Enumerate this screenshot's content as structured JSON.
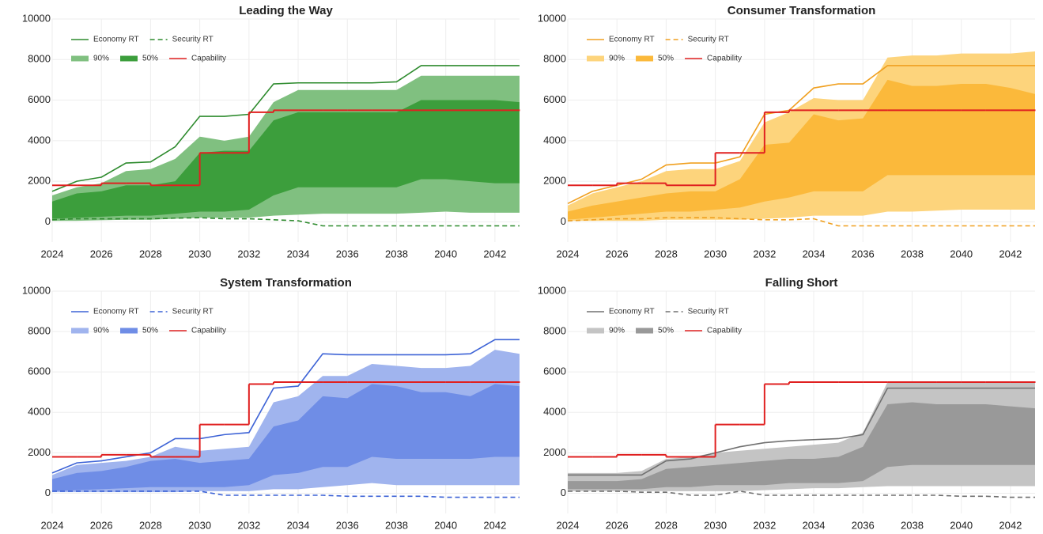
{
  "chart_data": [
    {
      "type": "line",
      "title": "Leading the Way",
      "legend": "upper left",
      "grid": true,
      "x": [
        2024,
        2025,
        2026,
        2027,
        2028,
        2029,
        2030,
        2031,
        2032,
        2033,
        2034,
        2035,
        2036,
        2037,
        2038,
        2039,
        2040,
        2041,
        2042,
        2043
      ],
      "xlim": [
        2024,
        2043
      ],
      "xticks": [
        2024,
        2026,
        2028,
        2030,
        2032,
        2034,
        2036,
        2038,
        2040,
        2042
      ],
      "ylim": [
        -1000,
        10000
      ],
      "yticks": [
        0,
        2000,
        4000,
        6000,
        8000,
        10000
      ],
      "series": [
        {
          "name": "Economy RT",
          "color": "#2e8b2e",
          "style": "solid",
          "values": [
            1500,
            2000,
            2200,
            2900,
            2950,
            3700,
            5200,
            5200,
            5300,
            6800,
            6850,
            6850,
            6850,
            6850,
            6900,
            7700,
            7700,
            7700,
            7700,
            7700
          ]
        },
        {
          "name": "Security RT",
          "color": "#2e8b2e",
          "style": "dashed",
          "values": [
            100,
            150,
            150,
            150,
            150,
            180,
            200,
            150,
            150,
            100,
            50,
            -200,
            -200,
            -200,
            -200,
            -200,
            -200,
            -200,
            -200,
            -200
          ]
        },
        {
          "name": "90%",
          "color": "#80c080",
          "style": "band",
          "lower": [
            50,
            50,
            80,
            100,
            100,
            150,
            200,
            200,
            200,
            300,
            350,
            400,
            400,
            400,
            400,
            450,
            500,
            450,
            450,
            450
          ],
          "upper": [
            1300,
            1700,
            1900,
            2500,
            2600,
            3100,
            4200,
            4000,
            4200,
            5900,
            6500,
            6500,
            6500,
            6500,
            6500,
            7200,
            7200,
            7200,
            7200,
            7200
          ]
        },
        {
          "name": "50%",
          "color": "#3c9e3c",
          "style": "band",
          "lower": [
            150,
            200,
            250,
            300,
            300,
            400,
            500,
            500,
            600,
            1300,
            1700,
            1700,
            1700,
            1700,
            1700,
            2100,
            2100,
            2000,
            1900,
            1900
          ],
          "upper": [
            1000,
            1400,
            1500,
            1800,
            1800,
            2000,
            3400,
            3500,
            3500,
            5000,
            5400,
            5400,
            5400,
            5400,
            5400,
            6000,
            6000,
            6000,
            6000,
            5900
          ]
        },
        {
          "name": "Capability",
          "color": "#e02020",
          "style": "step",
          "values": [
            1800,
            1800,
            1900,
            1900,
            1800,
            1800,
            3400,
            3400,
            5400,
            5500,
            5500,
            5500,
            5500,
            5500,
            5500,
            5500,
            5500,
            5500,
            5500,
            5500
          ]
        }
      ]
    },
    {
      "type": "line",
      "title": "Consumer Transformation",
      "legend": "upper left",
      "grid": true,
      "x": [
        2024,
        2025,
        2026,
        2027,
        2028,
        2029,
        2030,
        2031,
        2032,
        2033,
        2034,
        2035,
        2036,
        2037,
        2038,
        2039,
        2040,
        2041,
        2042,
        2043
      ],
      "xlim": [
        2024,
        2043
      ],
      "xticks": [
        2024,
        2026,
        2028,
        2030,
        2032,
        2034,
        2036,
        2038,
        2040,
        2042
      ],
      "ylim": [
        -1000,
        10000
      ],
      "yticks": [
        0,
        2000,
        4000,
        6000,
        8000,
        10000
      ],
      "series": [
        {
          "name": "Economy RT",
          "color": "#f0a020",
          "style": "solid",
          "values": [
            900,
            1500,
            1800,
            2100,
            2800,
            2900,
            2900,
            3200,
            5300,
            5500,
            6600,
            6800,
            6800,
            7700,
            7700,
            7700,
            7700,
            7700,
            7700,
            7700
          ]
        },
        {
          "name": "Security RT",
          "color": "#f0a020",
          "style": "dashed",
          "values": [
            50,
            100,
            150,
            150,
            200,
            200,
            200,
            150,
            100,
            100,
            150,
            -200,
            -200,
            -200,
            -200,
            -200,
            -200,
            -200,
            -200,
            -200
          ]
        },
        {
          "name": "90%",
          "color": "#fdd47c",
          "style": "band",
          "lower": [
            50,
            50,
            50,
            50,
            100,
            100,
            100,
            100,
            150,
            200,
            300,
            300,
            300,
            500,
            500,
            550,
            600,
            600,
            600,
            600
          ],
          "upper": [
            800,
            1400,
            1700,
            2000,
            2500,
            2600,
            2600,
            3000,
            4900,
            5400,
            6100,
            6000,
            6000,
            8100,
            8200,
            8200,
            8300,
            8300,
            8300,
            8400
          ]
        },
        {
          "name": "50%",
          "color": "#fbb93b",
          "style": "band",
          "lower": [
            100,
            200,
            300,
            400,
            500,
            500,
            600,
            700,
            1000,
            1200,
            1500,
            1500,
            1500,
            2300,
            2300,
            2300,
            2300,
            2300,
            2300,
            2300
          ],
          "upper": [
            500,
            800,
            1000,
            1200,
            1400,
            1500,
            1500,
            2100,
            3800,
            3900,
            5300,
            5000,
            5100,
            7000,
            6700,
            6700,
            6800,
            6800,
            6600,
            6300
          ]
        },
        {
          "name": "Capability",
          "color": "#e02020",
          "style": "step",
          "values": [
            1800,
            1800,
            1900,
            1900,
            1800,
            1800,
            3400,
            3400,
            5400,
            5500,
            5500,
            5500,
            5500,
            5500,
            5500,
            5500,
            5500,
            5500,
            5500,
            5500
          ]
        }
      ]
    },
    {
      "type": "line",
      "title": "System Transformation",
      "legend": "upper left",
      "grid": true,
      "x": [
        2024,
        2025,
        2026,
        2027,
        2028,
        2029,
        2030,
        2031,
        2032,
        2033,
        2034,
        2035,
        2036,
        2037,
        2038,
        2039,
        2040,
        2041,
        2042,
        2043
      ],
      "xlim": [
        2024,
        2043
      ],
      "xticks": [
        2024,
        2026,
        2028,
        2030,
        2032,
        2034,
        2036,
        2038,
        2040,
        2042
      ],
      "ylim": [
        -1000,
        10000
      ],
      "yticks": [
        0,
        2000,
        4000,
        6000,
        8000,
        10000
      ],
      "series": [
        {
          "name": "Economy RT",
          "color": "#3d63d6",
          "style": "solid",
          "values": [
            1000,
            1500,
            1600,
            1800,
            2000,
            2700,
            2700,
            2900,
            3000,
            5200,
            5300,
            6900,
            6850,
            6850,
            6850,
            6850,
            6850,
            6900,
            7600,
            7600
          ]
        },
        {
          "name": "Security RT",
          "color": "#3d63d6",
          "style": "dashed",
          "values": [
            100,
            100,
            100,
            100,
            100,
            100,
            100,
            -100,
            -100,
            -100,
            -100,
            -100,
            -150,
            -150,
            -150,
            -150,
            -200,
            -200,
            -200,
            -200
          ]
        },
        {
          "name": "90%",
          "color": "#a0b4ee",
          "style": "band",
          "lower": [
            50,
            50,
            50,
            50,
            50,
            50,
            100,
            100,
            100,
            200,
            200,
            300,
            400,
            500,
            400,
            400,
            400,
            400,
            400,
            400
          ],
          "upper": [
            900,
            1400,
            1500,
            1600,
            1800,
            2300,
            2100,
            2200,
            2300,
            4500,
            4800,
            5800,
            5800,
            6400,
            6300,
            6200,
            6200,
            6300,
            7100,
            6900
          ]
        },
        {
          "name": "50%",
          "color": "#6f8de6",
          "style": "band",
          "lower": [
            100,
            150,
            200,
            250,
            300,
            300,
            300,
            300,
            400,
            900,
            1000,
            1300,
            1300,
            1800,
            1700,
            1700,
            1700,
            1700,
            1800,
            1800
          ],
          "upper": [
            700,
            1000,
            1100,
            1300,
            1600,
            1700,
            1500,
            1600,
            1700,
            3300,
            3600,
            4800,
            4700,
            5400,
            5300,
            5000,
            5000,
            4800,
            5400,
            5300
          ]
        },
        {
          "name": "Capability",
          "color": "#e02020",
          "style": "step",
          "values": [
            1800,
            1800,
            1900,
            1900,
            1800,
            1800,
            3400,
            3400,
            5400,
            5500,
            5500,
            5500,
            5500,
            5500,
            5500,
            5500,
            5500,
            5500,
            5500,
            5500
          ]
        }
      ]
    },
    {
      "type": "line",
      "title": "Falling Short",
      "legend": "upper left",
      "grid": true,
      "x": [
        2024,
        2025,
        2026,
        2027,
        2028,
        2029,
        2030,
        2031,
        2032,
        2033,
        2034,
        2035,
        2036,
        2037,
        2038,
        2039,
        2040,
        2041,
        2042,
        2043
      ],
      "xlim": [
        2024,
        2043
      ],
      "xticks": [
        2024,
        2026,
        2028,
        2030,
        2032,
        2034,
        2036,
        2038,
        2040,
        2042
      ],
      "ylim": [
        -1000,
        10000
      ],
      "yticks": [
        0,
        2000,
        4000,
        6000,
        8000,
        10000
      ],
      "series": [
        {
          "name": "Economy RT",
          "color": "#707070",
          "style": "solid",
          "values": [
            900,
            900,
            900,
            900,
            1600,
            1700,
            2000,
            2300,
            2500,
            2600,
            2650,
            2700,
            2900,
            5200,
            5200,
            5200,
            5200,
            5200,
            5200,
            5200
          ]
        },
        {
          "name": "Security RT",
          "color": "#707070",
          "style": "dashed",
          "values": [
            100,
            100,
            100,
            50,
            50,
            -100,
            -100,
            100,
            -100,
            -100,
            -100,
            -100,
            -100,
            -100,
            -100,
            -100,
            -150,
            -150,
            -200,
            -200
          ]
        },
        {
          "name": "90%",
          "color": "#c4c4c4",
          "style": "band",
          "lower": [
            100,
            100,
            100,
            100,
            100,
            100,
            100,
            100,
            150,
            200,
            250,
            250,
            300,
            350,
            350,
            350,
            350,
            350,
            350,
            350
          ],
          "upper": [
            1000,
            1000,
            1000,
            1100,
            1700,
            1800,
            2000,
            2100,
            2200,
            2300,
            2400,
            2500,
            3000,
            5500,
            5500,
            5500,
            5500,
            5500,
            5500,
            5500
          ]
        },
        {
          "name": "50%",
          "color": "#999999",
          "style": "band",
          "lower": [
            200,
            200,
            200,
            200,
            300,
            300,
            400,
            400,
            400,
            500,
            500,
            500,
            600,
            1300,
            1400,
            1400,
            1400,
            1400,
            1400,
            1400
          ],
          "upper": [
            600,
            600,
            600,
            700,
            1200,
            1300,
            1400,
            1500,
            1600,
            1700,
            1700,
            1800,
            2300,
            4400,
            4500,
            4400,
            4400,
            4400,
            4300,
            4200
          ]
        },
        {
          "name": "Capability",
          "color": "#e02020",
          "style": "step",
          "values": [
            1800,
            1800,
            1900,
            1900,
            1800,
            1800,
            3400,
            3400,
            5400,
            5500,
            5500,
            5500,
            5500,
            5500,
            5500,
            5500,
            5500,
            5500,
            5500,
            5500
          ]
        }
      ]
    }
  ]
}
